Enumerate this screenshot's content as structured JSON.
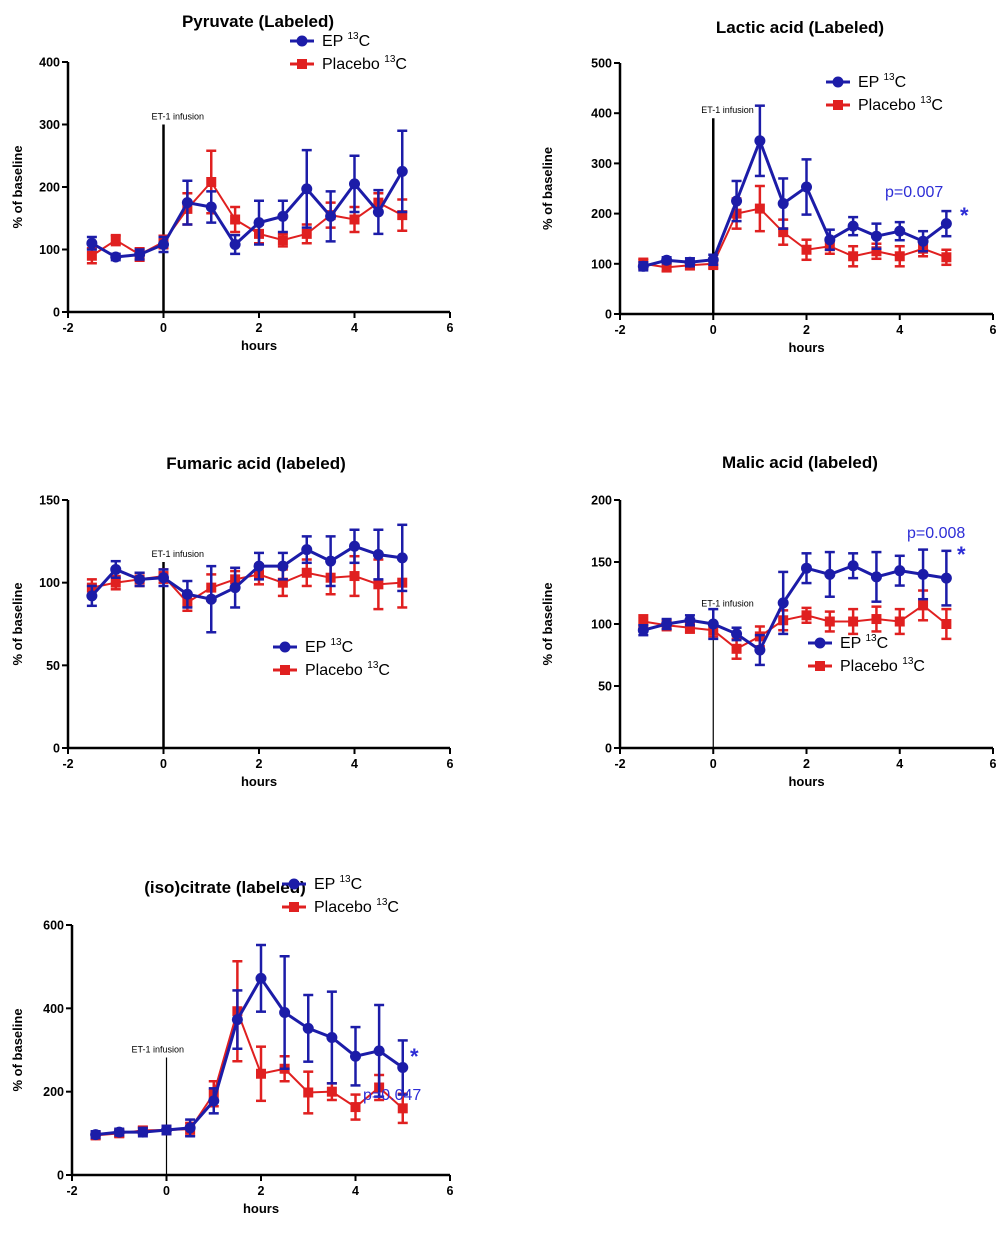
{
  "colors": {
    "ep": "#1c1ca8",
    "placebo": "#e02020",
    "pvalue": "#2d2dd6",
    "axis": "#000000"
  },
  "chart_data": [
    {
      "type": "line",
      "title": "Pyruvate (Labeled)",
      "xlabel": "hours",
      "ylabel": "% of baseline",
      "xlim": [
        -2,
        6
      ],
      "ylim": [
        0,
        400
      ],
      "xticks": [
        -2,
        0,
        2,
        4,
        6
      ],
      "yticks": [
        0,
        100,
        200,
        300,
        400
      ],
      "grid": false,
      "legend_position": "top-right",
      "annotation": "ET-1 infusion",
      "pvalue": "",
      "star": "",
      "x": [
        -1.5,
        -1,
        -0.5,
        0,
        0.5,
        1,
        1.5,
        2,
        2.5,
        3,
        3.5,
        4,
        4.5,
        5
      ],
      "series": [
        {
          "name": "EP",
          "isotope": "13",
          "element": "C",
          "values": [
            110,
            88,
            92,
            108,
            175,
            168,
            108,
            143,
            153,
            197,
            153,
            205,
            160,
            225
          ],
          "errors": [
            10,
            5,
            8,
            12,
            35,
            25,
            15,
            35,
            25,
            62,
            40,
            45,
            35,
            65
          ]
        },
        {
          "name": "Placebo",
          "isotope": "13",
          "element": "C",
          "values": [
            90,
            115,
            92,
            112,
            165,
            208,
            148,
            125,
            115,
            125,
            155,
            148,
            175,
            155
          ],
          "errors": [
            12,
            8,
            10,
            10,
            25,
            50,
            20,
            15,
            10,
            15,
            20,
            20,
            15,
            25
          ]
        }
      ]
    },
    {
      "type": "line",
      "title": "Lactic acid (Labeled)",
      "xlabel": "hours",
      "ylabel": "% of baseline",
      "xlim": [
        -2,
        6
      ],
      "ylim": [
        0,
        500
      ],
      "xticks": [
        -2,
        0,
        2,
        4,
        6
      ],
      "yticks": [
        0,
        100,
        200,
        300,
        400,
        500
      ],
      "grid": false,
      "legend_position": "top-right",
      "annotation": "ET-1 infusion",
      "pvalue": "p=0.007",
      "star": "*",
      "x": [
        -1.5,
        -1,
        -0.5,
        0,
        0.5,
        1,
        1.5,
        2,
        2.5,
        3,
        3.5,
        4,
        4.5,
        5
      ],
      "series": [
        {
          "name": "EP",
          "isotope": "13",
          "element": "C",
          "values": [
            95,
            107,
            103,
            108,
            225,
            345,
            220,
            253,
            148,
            175,
            155,
            165,
            145,
            180
          ],
          "errors": [
            8,
            6,
            8,
            10,
            40,
            70,
            50,
            55,
            20,
            18,
            25,
            18,
            20,
            25
          ]
        },
        {
          "name": "Placebo",
          "isotope": "13",
          "element": "C",
          "values": [
            100,
            93,
            97,
            100,
            200,
            210,
            163,
            128,
            135,
            115,
            125,
            115,
            130,
            113
          ],
          "errors": [
            10,
            8,
            8,
            10,
            30,
            45,
            25,
            20,
            15,
            20,
            15,
            20,
            15,
            15
          ]
        }
      ]
    },
    {
      "type": "line",
      "title": "Fumaric acid (labeled)",
      "xlabel": "hours",
      "ylabel": "% of baseline",
      "xlim": [
        -2,
        6
      ],
      "ylim": [
        0,
        150
      ],
      "xticks": [
        -2,
        0,
        2,
        4,
        6
      ],
      "yticks": [
        0,
        50,
        100,
        150
      ],
      "grid": false,
      "legend_position": "bottom-right",
      "annotation": "ET-1 infusion",
      "pvalue": "",
      "star": "",
      "x": [
        -1.5,
        -1,
        -0.5,
        0,
        0.5,
        1,
        1.5,
        2,
        2.5,
        3,
        3.5,
        4,
        4.5,
        5
      ],
      "series": [
        {
          "name": "EP",
          "isotope": "13",
          "element": "C",
          "values": [
            92,
            108,
            102,
            103,
            93,
            90,
            97,
            110,
            110,
            120,
            113,
            122,
            117,
            115
          ],
          "errors": [
            6,
            5,
            4,
            5,
            8,
            20,
            12,
            8,
            8,
            8,
            15,
            10,
            15,
            20
          ]
        },
        {
          "name": "Placebo",
          "isotope": "13",
          "element": "C",
          "values": [
            97,
            100,
            102,
            104,
            88,
            97,
            102,
            105,
            100,
            106,
            103,
            104,
            99,
            100
          ],
          "errors": [
            5,
            4,
            4,
            4,
            5,
            8,
            5,
            6,
            8,
            8,
            10,
            12,
            15,
            15
          ]
        }
      ]
    },
    {
      "type": "line",
      "title": "Malic acid (labeled)",
      "xlabel": "hours",
      "ylabel": "% of baseline",
      "xlim": [
        -2,
        6
      ],
      "ylim": [
        0,
        200
      ],
      "xticks": [
        -2,
        0,
        2,
        4,
        6
      ],
      "yticks": [
        0,
        50,
        100,
        150,
        200
      ],
      "grid": false,
      "legend_position": "bottom-right",
      "annotation": "ET-1 infusion",
      "pvalue": "p=0.008",
      "star": "*",
      "x": [
        -1.5,
        -1,
        -0.5,
        0,
        0.5,
        1,
        1.5,
        2,
        2.5,
        3,
        3.5,
        4,
        4.5,
        5
      ],
      "series": [
        {
          "name": "EP",
          "isotope": "13",
          "element": "C",
          "values": [
            95,
            100,
            103,
            100,
            92,
            79,
            117,
            145,
            140,
            147,
            138,
            143,
            140,
            137
          ],
          "errors": [
            4,
            4,
            4,
            12,
            5,
            12,
            25,
            12,
            18,
            10,
            20,
            12,
            20,
            22
          ]
        },
        {
          "name": "Placebo",
          "isotope": "13",
          "element": "C",
          "values": [
            102,
            99,
            97,
            95,
            80,
            90,
            103,
            107,
            102,
            102,
            104,
            102,
            115,
            100
          ],
          "errors": [
            5,
            4,
            4,
            5,
            8,
            8,
            8,
            6,
            8,
            10,
            10,
            10,
            12,
            12
          ]
        }
      ]
    },
    {
      "type": "line",
      "title": "(iso)citrate (labeled)",
      "xlabel": "hours",
      "ylabel": "% of baseline",
      "xlim": [
        -2,
        6
      ],
      "ylim": [
        0,
        600
      ],
      "xticks": [
        -2,
        0,
        2,
        4,
        6
      ],
      "yticks": [
        0,
        200,
        400,
        600
      ],
      "grid": false,
      "legend_position": "top-right",
      "annotation": "ET-1 infusion",
      "pvalue": "p=0.047",
      "star": "*",
      "x": [
        -1.5,
        -1,
        -0.5,
        0,
        0.5,
        1,
        1.5,
        2,
        2.5,
        3,
        3.5,
        4,
        4.5,
        5
      ],
      "series": [
        {
          "name": "EP",
          "isotope": "13",
          "element": "C",
          "values": [
            97,
            103,
            103,
            108,
            113,
            178,
            373,
            472,
            390,
            352,
            330,
            285,
            298,
            258
          ],
          "errors": [
            8,
            8,
            10,
            10,
            20,
            30,
            70,
            80,
            135,
            80,
            110,
            70,
            110,
            65
          ]
        },
        {
          "name": "Placebo",
          "isotope": "13",
          "element": "C",
          "values": [
            95,
            100,
            107,
            108,
            110,
            195,
            393,
            243,
            255,
            198,
            200,
            163,
            210,
            160
          ],
          "errors": [
            8,
            8,
            8,
            10,
            15,
            30,
            120,
            65,
            30,
            50,
            20,
            30,
            30,
            35
          ]
        }
      ]
    }
  ]
}
